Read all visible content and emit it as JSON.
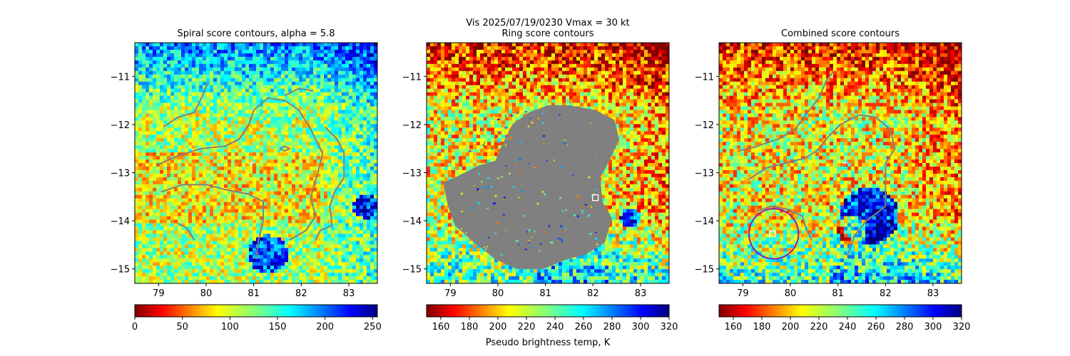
{
  "figure": {
    "suptitle_line1": "Vis  2025/07/19/0230    Vmax = 30 kt"
  },
  "colorbar_label": "Pseudo brightness temp, K",
  "chart_data": [
    {
      "type": "heatmap",
      "title": "Spiral score contours, alpha =  5.8",
      "xlim": [
        78.5,
        83.6
      ],
      "ylim": [
        -15.3,
        -10.3
      ],
      "xticks": [
        "79",
        "80",
        "81",
        "82",
        "83"
      ],
      "yticks": [
        "−11",
        "−12",
        "−13",
        "−14",
        "−15"
      ],
      "colormap": "jet_r",
      "colorbar_ticks": [
        "0",
        "50",
        "100",
        "150",
        "200",
        "250"
      ],
      "colorbar_range": [
        0,
        255
      ],
      "contours": [
        [
          [
            79.1,
            -12.05
          ],
          [
            79.4,
            -11.85
          ],
          [
            79.75,
            -11.75
          ],
          [
            79.9,
            -11.45
          ],
          [
            80.05,
            -11.1
          ]
        ],
        [
          [
            78.95,
            -12.85
          ],
          [
            79.4,
            -12.65
          ],
          [
            79.9,
            -12.5
          ],
          [
            80.4,
            -12.45
          ],
          [
            80.7,
            -12.3
          ],
          [
            80.9,
            -12.0
          ],
          [
            81.0,
            -11.7
          ],
          [
            81.3,
            -11.45
          ],
          [
            81.65,
            -11.5
          ],
          [
            81.95,
            -11.7
          ],
          [
            82.2,
            -12.1
          ],
          [
            82.45,
            -12.6
          ],
          [
            82.35,
            -13.0
          ],
          [
            82.2,
            -13.5
          ],
          [
            82.3,
            -13.9
          ],
          [
            82.1,
            -14.2
          ],
          [
            81.75,
            -14.4
          ]
        ],
        [
          [
            79.05,
            -13.4
          ],
          [
            79.5,
            -13.25
          ],
          [
            80.0,
            -13.25
          ],
          [
            80.4,
            -13.35
          ],
          [
            80.9,
            -13.45
          ],
          [
            81.2,
            -13.6
          ],
          [
            81.2,
            -14.0
          ],
          [
            81.1,
            -14.4
          ],
          [
            81.05,
            -14.8
          ]
        ],
        [
          [
            79.4,
            -14.05
          ],
          [
            79.6,
            -14.15
          ],
          [
            79.75,
            -14.4
          ]
        ],
        [
          [
            81.65,
            -11.4
          ],
          [
            81.95,
            -11.25
          ],
          [
            82.25,
            -11.3
          ]
        ],
        [
          [
            82.5,
            -12.05
          ],
          [
            82.75,
            -12.3
          ],
          [
            82.9,
            -12.6
          ],
          [
            82.9,
            -13.1
          ],
          [
            82.7,
            -13.4
          ],
          [
            82.6,
            -13.7
          ],
          [
            82.65,
            -14.1
          ],
          [
            82.4,
            -14.2
          ],
          [
            82.3,
            -14.4
          ]
        ],
        [
          [
            81.55,
            -12.5
          ],
          [
            81.65,
            -12.55
          ],
          [
            81.75,
            -12.5
          ],
          [
            81.65,
            -12.45
          ],
          [
            81.55,
            -12.5
          ]
        ]
      ],
      "markers": [
        {
          "shape": "plus",
          "x": 80.95,
          "y": -12.8,
          "color": "#ffffff"
        }
      ]
    },
    {
      "type": "heatmap",
      "title": "Ring score contours",
      "xlim": [
        78.5,
        83.6
      ],
      "ylim": [
        -15.3,
        -10.3
      ],
      "xticks": [
        "79",
        "80",
        "81",
        "82",
        "83"
      ],
      "yticks": [
        "−11",
        "−12",
        "−13",
        "−14",
        "−15"
      ],
      "colormap": "jet_r",
      "colorbar_ticks": [
        "160",
        "180",
        "200",
        "220",
        "240",
        "260",
        "280",
        "300",
        "320"
      ],
      "colorbar_range": [
        150,
        320
      ],
      "mask_color": "#808080",
      "mask_polygon": [
        [
          78.85,
          -13.2
        ],
        [
          79.1,
          -13.1
        ],
        [
          79.6,
          -12.85
        ],
        [
          79.95,
          -12.75
        ],
        [
          80.05,
          -12.5
        ],
        [
          80.3,
          -12.0
        ],
        [
          80.65,
          -11.75
        ],
        [
          81.05,
          -11.6
        ],
        [
          81.5,
          -11.6
        ],
        [
          82.05,
          -11.7
        ],
        [
          82.45,
          -11.9
        ],
        [
          82.55,
          -12.3
        ],
        [
          82.35,
          -12.75
        ],
        [
          82.15,
          -13.1
        ],
        [
          82.2,
          -13.6
        ],
        [
          82.4,
          -13.95
        ],
        [
          82.25,
          -14.45
        ],
        [
          81.85,
          -14.7
        ],
        [
          81.45,
          -14.8
        ],
        [
          80.95,
          -15.0
        ],
        [
          80.4,
          -15.0
        ],
        [
          79.95,
          -14.8
        ],
        [
          79.5,
          -14.45
        ],
        [
          79.1,
          -14.1
        ],
        [
          78.95,
          -13.7
        ],
        [
          78.85,
          -13.2
        ]
      ],
      "markers": [
        {
          "shape": "square",
          "x": 82.05,
          "y": -13.52,
          "color": "#ffffff"
        }
      ]
    },
    {
      "type": "heatmap",
      "title": "Combined score contours",
      "xlim": [
        78.5,
        83.6
      ],
      "ylim": [
        -15.3,
        -10.3
      ],
      "xticks": [
        "79",
        "80",
        "81",
        "82",
        "83"
      ],
      "yticks": [
        "−11",
        "−12",
        "−13",
        "−14",
        "−15"
      ],
      "colormap": "jet_r",
      "colorbar_ticks": [
        "160",
        "180",
        "200",
        "220",
        "240",
        "260",
        "280",
        "300",
        "320"
      ],
      "colorbar_range": [
        150,
        320
      ],
      "contours": [
        [
          [
            78.9,
            -12.55
          ],
          [
            79.3,
            -12.45
          ],
          [
            79.75,
            -12.3
          ],
          [
            80.1,
            -12.1
          ],
          [
            80.4,
            -11.7
          ],
          [
            80.6,
            -11.45
          ],
          [
            80.75,
            -11.1
          ],
          [
            80.9,
            -10.9
          ]
        ],
        [
          [
            79.1,
            -13.15
          ],
          [
            79.5,
            -12.9
          ],
          [
            79.9,
            -12.8
          ],
          [
            80.3,
            -12.7
          ],
          [
            80.55,
            -12.55
          ],
          [
            80.8,
            -12.25
          ],
          [
            81.05,
            -12.0
          ],
          [
            81.45,
            -11.8
          ],
          [
            81.8,
            -11.85
          ],
          [
            82.1,
            -12.1
          ],
          [
            82.2,
            -12.5
          ],
          [
            82.0,
            -12.8
          ],
          [
            82.0,
            -13.3
          ],
          [
            82.0,
            -13.7
          ],
          [
            81.6,
            -14.0
          ],
          [
            81.35,
            -14.3
          ],
          [
            81.2,
            -14.75
          ]
        ],
        [
          [
            79.3,
            -13.8
          ],
          [
            79.6,
            -13.7
          ],
          [
            79.9,
            -13.75
          ],
          [
            80.25,
            -13.9
          ],
          [
            80.35,
            -14.2
          ],
          [
            80.45,
            -14.4
          ]
        ]
      ],
      "circle": {
        "cx": 79.65,
        "cy": -14.27,
        "r": 0.52,
        "color": "#9a1aa0"
      },
      "markers": [
        {
          "shape": "square",
          "x": 79.62,
          "y": -14.27,
          "color": "#ffffff"
        },
        {
          "shape": "plus",
          "x": 81.15,
          "y": -12.8,
          "color": "#ffffff"
        }
      ]
    }
  ]
}
